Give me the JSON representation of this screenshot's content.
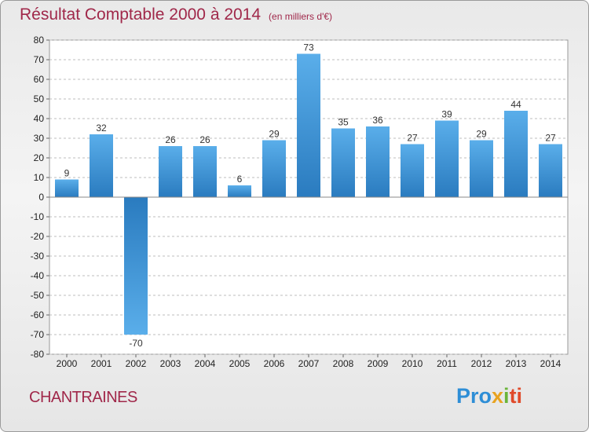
{
  "header": {
    "title": "Résultat Comptable 2000 à 2014",
    "unit": "(en milliers d'€)"
  },
  "footer": {
    "commune": "CHANTRAINES",
    "logo_parts": [
      "Pro",
      "x",
      "i",
      "ti"
    ]
  },
  "colors": {
    "bar_light": "#5aaeea",
    "bar_dark": "#2a7bbf",
    "grid": "#bdbdbd",
    "title": "#a0284a"
  },
  "chart_data": {
    "type": "bar",
    "title": "Résultat Comptable 2000 à 2014",
    "subtitle": "(en milliers d'€)",
    "xlabel": "",
    "ylabel": "",
    "categories": [
      "2000",
      "2001",
      "2002",
      "2003",
      "2004",
      "2005",
      "2006",
      "2007",
      "2008",
      "2009",
      "2010",
      "2011",
      "2012",
      "2013",
      "2014"
    ],
    "values": [
      9,
      32,
      -70,
      26,
      26,
      6,
      29,
      73,
      35,
      36,
      27,
      39,
      29,
      44,
      27
    ],
    "ylim": [
      -80,
      80
    ],
    "yticks": [
      80,
      70,
      60,
      50,
      40,
      30,
      20,
      10,
      0,
      -10,
      -20,
      -30,
      -40,
      -50,
      -60,
      -70,
      -80
    ],
    "grid": true,
    "legend": "none"
  }
}
